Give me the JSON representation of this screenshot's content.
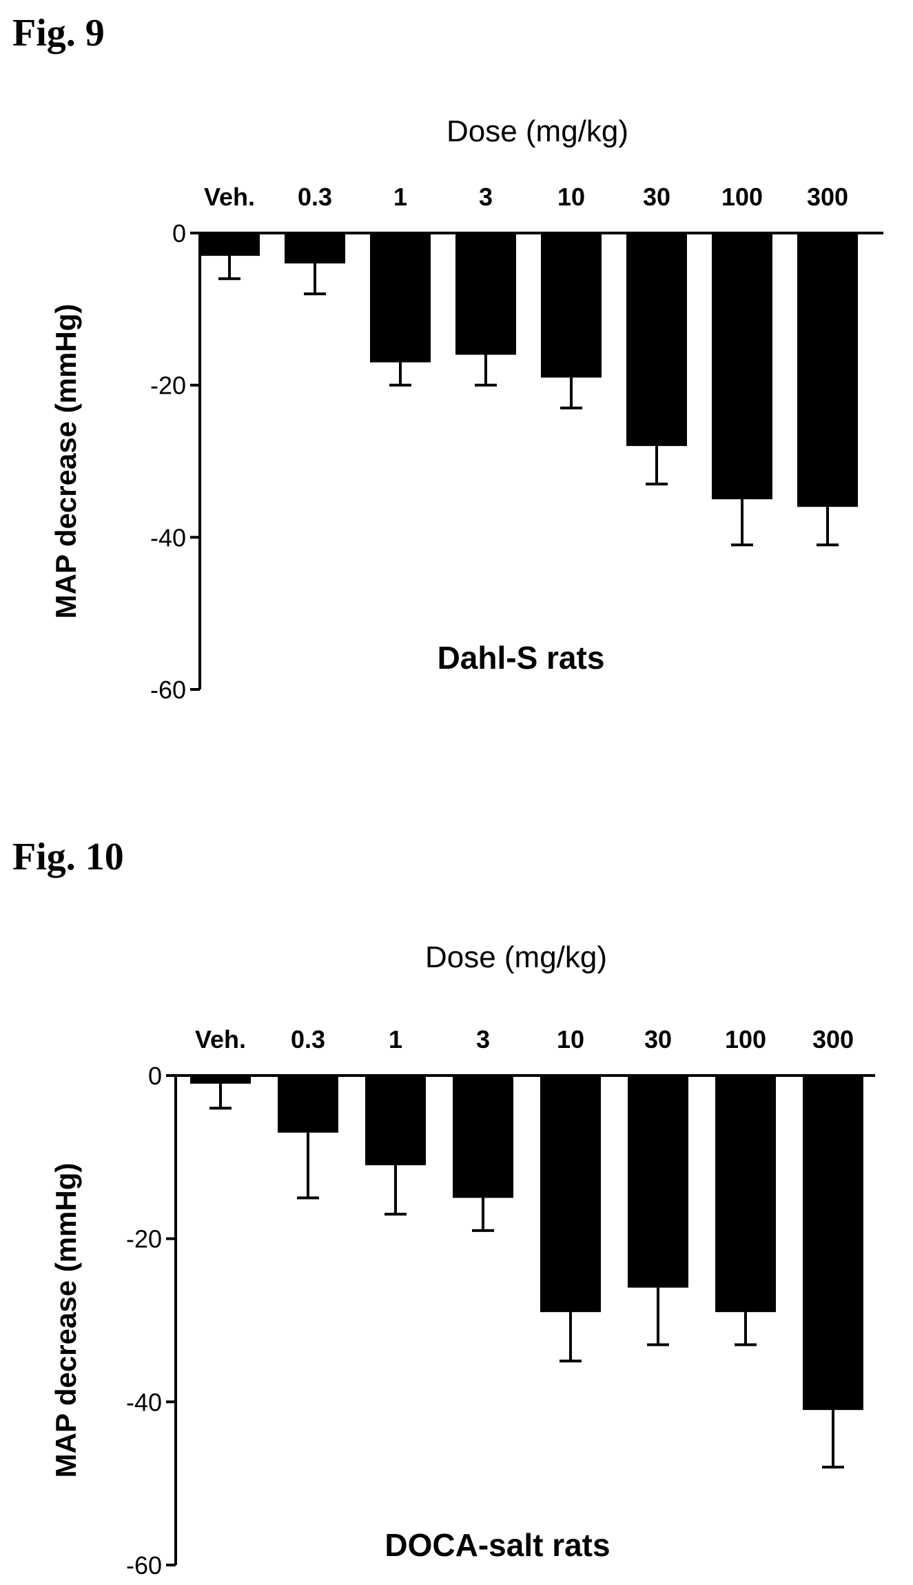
{
  "figures": [
    {
      "label": "Fig. 9",
      "chart_data": {
        "type": "bar",
        "title": "Dose (mg/kg)",
        "annotation": "Dahl-S rats",
        "xlabel": "Dose (mg/kg)",
        "ylabel": "MAP decrease (mmHg)",
        "x_axis_position": "top",
        "categories": [
          "Veh.",
          "0.3",
          "1",
          "3",
          "10",
          "30",
          "100",
          "300"
        ],
        "values": [
          -3,
          -4,
          -17,
          -16,
          -19,
          -28,
          -35,
          -36
        ],
        "error": [
          3,
          4,
          3,
          4,
          4,
          5,
          6,
          5
        ],
        "ylim": [
          -60,
          0
        ],
        "yticks": [
          0,
          -20,
          -40,
          -60
        ],
        "ytick_labels": [
          "0",
          "-20",
          "-40",
          "-60"
        ],
        "bar_color": "#000000",
        "grid": false
      }
    },
    {
      "label": "Fig. 10",
      "chart_data": {
        "type": "bar",
        "title": "Dose (mg/kg)",
        "annotation": "DOCA-salt rats",
        "xlabel": "Dose (mg/kg)",
        "ylabel": "MAP decrease (mmHg)",
        "x_axis_position": "top",
        "categories": [
          "Veh.",
          "0.3",
          "1",
          "3",
          "10",
          "30",
          "100",
          "300"
        ],
        "values": [
          -1,
          -7,
          -11,
          -15,
          -29,
          -26,
          -29,
          -41
        ],
        "error": [
          3,
          8,
          6,
          4,
          6,
          7,
          4,
          7
        ],
        "ylim": [
          -60,
          0
        ],
        "yticks": [
          0,
          -20,
          -40,
          -60
        ],
        "ytick_labels": [
          "0",
          "-20",
          "-40",
          "-60"
        ],
        "bar_color": "#000000",
        "grid": false
      }
    }
  ]
}
